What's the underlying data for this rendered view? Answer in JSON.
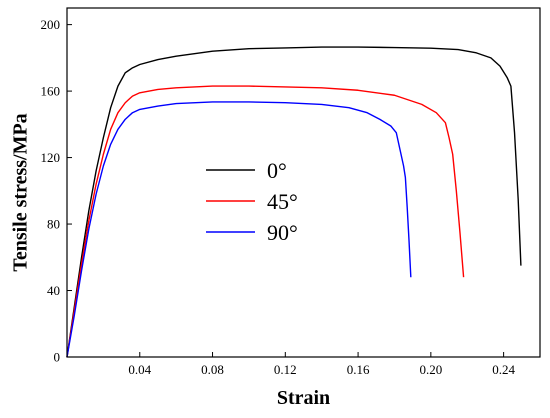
{
  "chart_data": {
    "type": "line",
    "title": "",
    "xlabel": "Strain",
    "ylabel": "Tensile stress/MPa",
    "xlim": [
      0,
      0.26
    ],
    "ylim": [
      0,
      210
    ],
    "grid": false,
    "legend_position": "center-left",
    "x_ticks": [
      {
        "value": 0.04,
        "label": "0.04"
      },
      {
        "value": 0.08,
        "label": "0.08"
      },
      {
        "value": 0.12,
        "label": "0.12"
      },
      {
        "value": 0.16,
        "label": "0.16"
      },
      {
        "value": 0.2,
        "label": "0.20"
      },
      {
        "value": 0.24,
        "label": "0.24"
      }
    ],
    "y_ticks": [
      {
        "value": 0,
        "label": "0"
      },
      {
        "value": 40,
        "label": "40"
      },
      {
        "value": 80,
        "label": "80"
      },
      {
        "value": 120,
        "label": "120"
      },
      {
        "value": 160,
        "label": "160"
      },
      {
        "value": 200,
        "label": "200"
      }
    ],
    "series": [
      {
        "name": "0°",
        "color": "#000000",
        "points": [
          [
            0.0,
            0
          ],
          [
            0.004,
            30
          ],
          [
            0.008,
            60
          ],
          [
            0.012,
            88
          ],
          [
            0.016,
            112
          ],
          [
            0.02,
            132
          ],
          [
            0.024,
            150
          ],
          [
            0.028,
            163
          ],
          [
            0.032,
            171
          ],
          [
            0.036,
            174
          ],
          [
            0.04,
            176
          ],
          [
            0.05,
            179
          ],
          [
            0.06,
            181
          ],
          [
            0.08,
            184
          ],
          [
            0.1,
            185.5
          ],
          [
            0.12,
            186
          ],
          [
            0.14,
            186.5
          ],
          [
            0.16,
            186.5
          ],
          [
            0.18,
            186.2
          ],
          [
            0.2,
            185.8
          ],
          [
            0.215,
            185
          ],
          [
            0.225,
            183
          ],
          [
            0.233,
            180
          ],
          [
            0.238,
            175
          ],
          [
            0.242,
            168
          ],
          [
            0.244,
            163
          ],
          [
            0.246,
            135
          ],
          [
            0.248,
            95
          ],
          [
            0.2495,
            55
          ]
        ]
      },
      {
        "name": "45°",
        "color": "#ff0000",
        "points": [
          [
            0.0,
            0
          ],
          [
            0.004,
            28
          ],
          [
            0.008,
            56
          ],
          [
            0.012,
            82
          ],
          [
            0.016,
            104
          ],
          [
            0.02,
            122
          ],
          [
            0.024,
            137
          ],
          [
            0.028,
            147
          ],
          [
            0.032,
            153
          ],
          [
            0.036,
            157
          ],
          [
            0.04,
            159
          ],
          [
            0.05,
            161
          ],
          [
            0.06,
            162
          ],
          [
            0.08,
            163
          ],
          [
            0.1,
            163
          ],
          [
            0.12,
            162.5
          ],
          [
            0.14,
            162
          ],
          [
            0.16,
            160.5
          ],
          [
            0.18,
            157.5
          ],
          [
            0.195,
            152
          ],
          [
            0.203,
            147
          ],
          [
            0.208,
            141
          ],
          [
            0.21,
            132
          ],
          [
            0.212,
            122
          ],
          [
            0.214,
            100
          ],
          [
            0.216,
            75
          ],
          [
            0.218,
            48
          ]
        ]
      },
      {
        "name": "90°",
        "color": "#0000ff",
        "points": [
          [
            0.0,
            0
          ],
          [
            0.004,
            25
          ],
          [
            0.008,
            52
          ],
          [
            0.012,
            77
          ],
          [
            0.016,
            98
          ],
          [
            0.02,
            115
          ],
          [
            0.024,
            128
          ],
          [
            0.028,
            137
          ],
          [
            0.032,
            143
          ],
          [
            0.036,
            147
          ],
          [
            0.04,
            149
          ],
          [
            0.05,
            151
          ],
          [
            0.06,
            152.5
          ],
          [
            0.08,
            153.5
          ],
          [
            0.1,
            153.5
          ],
          [
            0.12,
            153
          ],
          [
            0.14,
            152
          ],
          [
            0.155,
            150
          ],
          [
            0.165,
            147
          ],
          [
            0.172,
            143
          ],
          [
            0.178,
            139
          ],
          [
            0.181,
            135
          ],
          [
            0.183,
            125
          ],
          [
            0.185,
            115
          ],
          [
            0.186,
            108
          ],
          [
            0.187,
            90
          ],
          [
            0.188,
            70
          ],
          [
            0.189,
            48
          ]
        ]
      }
    ]
  }
}
